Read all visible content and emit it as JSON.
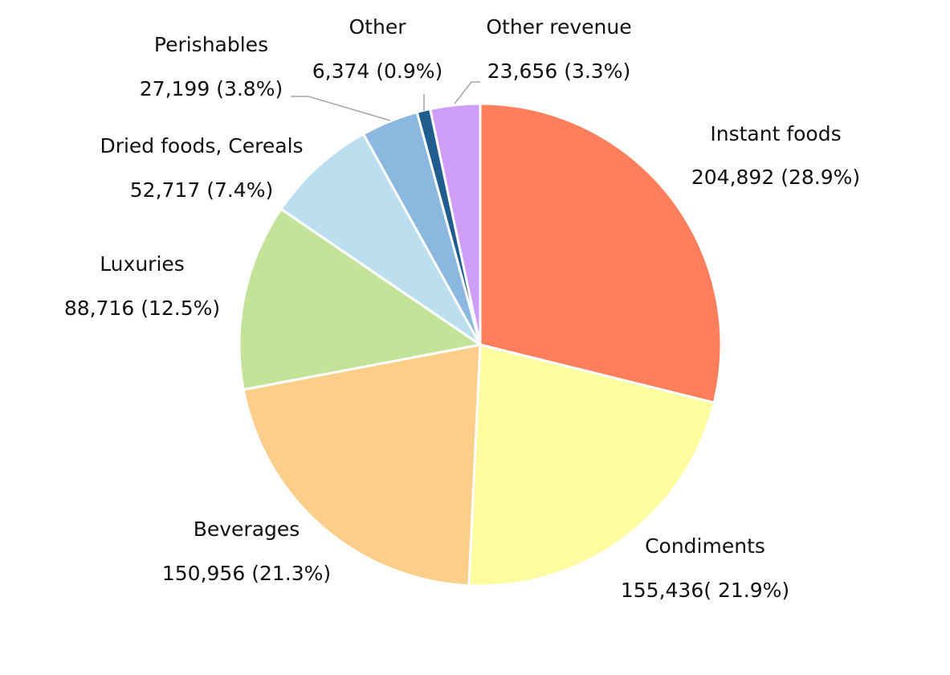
{
  "chart_data": {
    "type": "pie",
    "title": "",
    "start_angle": "12 o'clock",
    "direction": "clockwise",
    "slices": [
      {
        "label": "Instant foods",
        "value": 204892,
        "value_text": "204,892",
        "percent_text": "(28.9%)",
        "data_label": "204,892 (28.9%)",
        "color": "#FF7F5C"
      },
      {
        "label": "Condiments",
        "value": 155436,
        "value_text": "155,436",
        "percent_text": "(21.9%)",
        "data_label": "155,436( 21.9%)",
        "color": "#FFFDA0"
      },
      {
        "label": "Beverages",
        "value": 150956,
        "value_text": "150,956",
        "percent_text": "(21.3%)",
        "data_label": "150,956 (21.3%)",
        "color": "#FDCD8A"
      },
      {
        "label": "Luxuries",
        "value": 88716,
        "value_text": "88,716",
        "percent_text": "(12.5%)",
        "data_label": "88,716 (12.5%)",
        "color": "#C3E399"
      },
      {
        "label": "Dried foods, Cereals",
        "value": 52717,
        "value_text": "52,717",
        "percent_text": "(7.4%)",
        "data_label": "52,717 (7.4%)",
        "color": "#BCDFF0"
      },
      {
        "label": "Perishables",
        "value": 27199,
        "value_text": "27,199",
        "percent_text": "(3.8%)",
        "data_label": "27,199 (3.8%)",
        "color": "#8BB8DF"
      },
      {
        "label": "Other",
        "value": 6374,
        "value_text": "6,374",
        "percent_text": "(0.9%)",
        "data_label": "6,374 (0.9%)",
        "color": "#1F5D8F"
      },
      {
        "label": "Other revenue",
        "value": 23656,
        "value_text": "23,656",
        "percent_text": "(3.3%)",
        "data_label": "23,656 (3.3%)",
        "color": "#CE9EF8"
      }
    ],
    "legend": "none",
    "slice_border_color": "#ffffff",
    "leader_line_color": "#A6A6A6"
  }
}
